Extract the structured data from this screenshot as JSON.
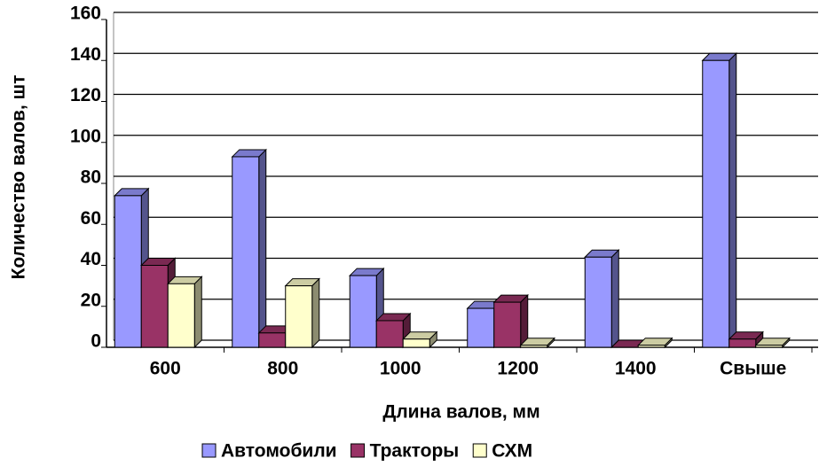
{
  "chart_data": {
    "type": "bar3d",
    "x_label": "Длина валов, мм",
    "y_label": "Количество валов, шт",
    "categories": [
      "600",
      "800",
      "1000",
      "1200",
      "1400",
      "Свыше"
    ],
    "series": [
      {
        "name": "Автомобили",
        "color": "#9999ff",
        "values": [
          74,
          93,
          35,
          19,
          44,
          140
        ]
      },
      {
        "name": "Тракторы",
        "color": "#993366",
        "values": [
          40,
          7,
          13,
          22,
          0,
          4
        ]
      },
      {
        "name": "СХМ",
        "color": "#ffffcc",
        "values": [
          31,
          30,
          4,
          1,
          1,
          1
        ]
      }
    ],
    "ylim": [
      0,
      160
    ],
    "yticks": [
      0,
      20,
      40,
      60,
      80,
      100,
      120,
      140,
      160
    ],
    "grid": true,
    "legend": "bottom"
  }
}
